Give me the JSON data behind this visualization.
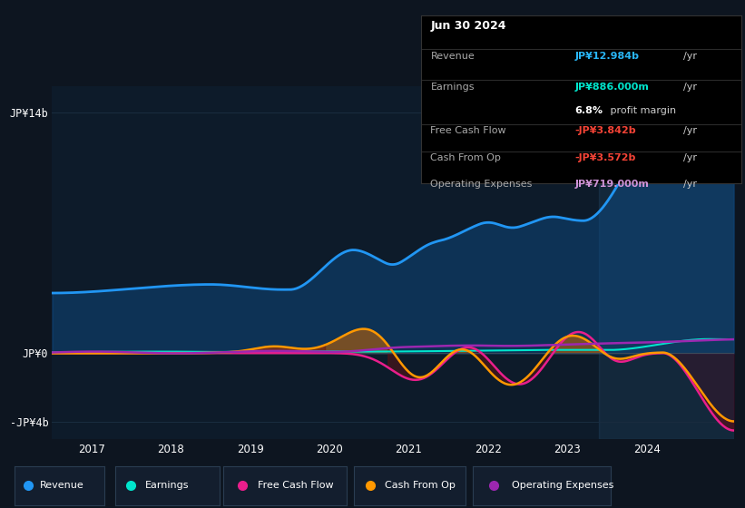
{
  "bg_color": "#0d1520",
  "plot_bg_color": "#0d1b2a",
  "grid_color": "#1a2d40",
  "ylim": [
    -5.0,
    15.5
  ],
  "yticks": [
    -4,
    0,
    14
  ],
  "ytick_labels": [
    "-JP¥4b",
    "JP¥0",
    "JP¥14b"
  ],
  "xlim": [
    2016.5,
    2025.1
  ],
  "xticks": [
    2017,
    2018,
    2019,
    2020,
    2021,
    2022,
    2023,
    2024
  ],
  "series": {
    "revenue": {
      "color": "#2196f3",
      "fill_color": "#1a3a5c",
      "label": "Revenue"
    },
    "earnings": {
      "color": "#00e5cc",
      "label": "Earnings"
    },
    "fcf": {
      "color": "#e91e8c",
      "label": "Free Cash Flow"
    },
    "cashop": {
      "color": "#ff9800",
      "label": "Cash From Op"
    },
    "opex": {
      "color": "#9c27b0",
      "label": "Operating Expenses"
    }
  },
  "info_box": {
    "date": "Jun 30 2024",
    "revenue_label": "Revenue",
    "revenue_val": "JP¥12.984b",
    "revenue_color": "#29b6f6",
    "earnings_label": "Earnings",
    "earnings_val": "JP¥886.000m",
    "earnings_color": "#00e5cc",
    "margin_val": "6.8%",
    "fcf_label": "Free Cash Flow",
    "fcf_val": "-JP¥3.842b",
    "fcf_color": "#f44336",
    "cashop_label": "Cash From Op",
    "cashop_val": "-JP¥3.572b",
    "cashop_color": "#f44336",
    "opex_label": "Operating Expenses",
    "opex_val": "JP¥719.000m",
    "opex_color": "#ce93d8"
  },
  "legend": [
    {
      "label": "Revenue",
      "color": "#2196f3"
    },
    {
      "label": "Earnings",
      "color": "#00e5cc"
    },
    {
      "label": "Free Cash Flow",
      "color": "#e91e8c"
    },
    {
      "label": "Cash From Op",
      "color": "#ff9800"
    },
    {
      "label": "Operating Expenses",
      "color": "#9c27b0"
    }
  ],
  "highlight_start_x": 2023.4
}
